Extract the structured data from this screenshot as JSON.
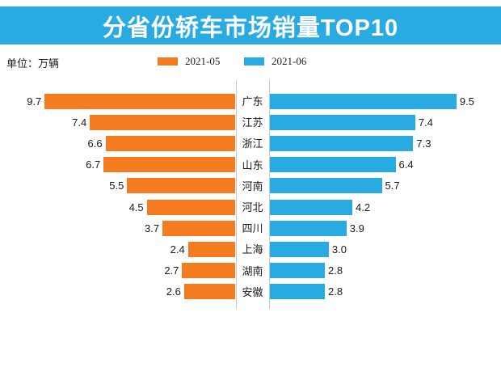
{
  "banner": {
    "background": "#29ABE2",
    "title_color": "#FFFFFF"
  },
  "chart_data": {
    "type": "bar",
    "variant": "mirrored-horizontal-tornado",
    "title": "分省份轿车市场销量TOP10",
    "unit_label": "单位：万辆",
    "categories": [
      "广东",
      "江苏",
      "浙江",
      "山东",
      "河南",
      "河北",
      "四川",
      "上海",
      "湖南",
      "安徽"
    ],
    "series": [
      {
        "name": "2021-05",
        "side": "left",
        "color": "#F47B20",
        "values": [
          9.7,
          7.4,
          6.6,
          6.7,
          5.5,
          4.5,
          3.7,
          2.4,
          2.7,
          2.6
        ]
      },
      {
        "name": "2021-06",
        "side": "right",
        "color": "#29ABE2",
        "values": [
          9.5,
          7.4,
          7.3,
          6.4,
          5.7,
          4.2,
          3.9,
          3.0,
          2.8,
          2.8
        ]
      }
    ],
    "value_axis_range_each_side": [
      0,
      10
    ],
    "value_label_format": "one-decimal, outside bar end",
    "legend_position": "top-center",
    "grid": false,
    "sorted_by": "2021-06 descending"
  }
}
